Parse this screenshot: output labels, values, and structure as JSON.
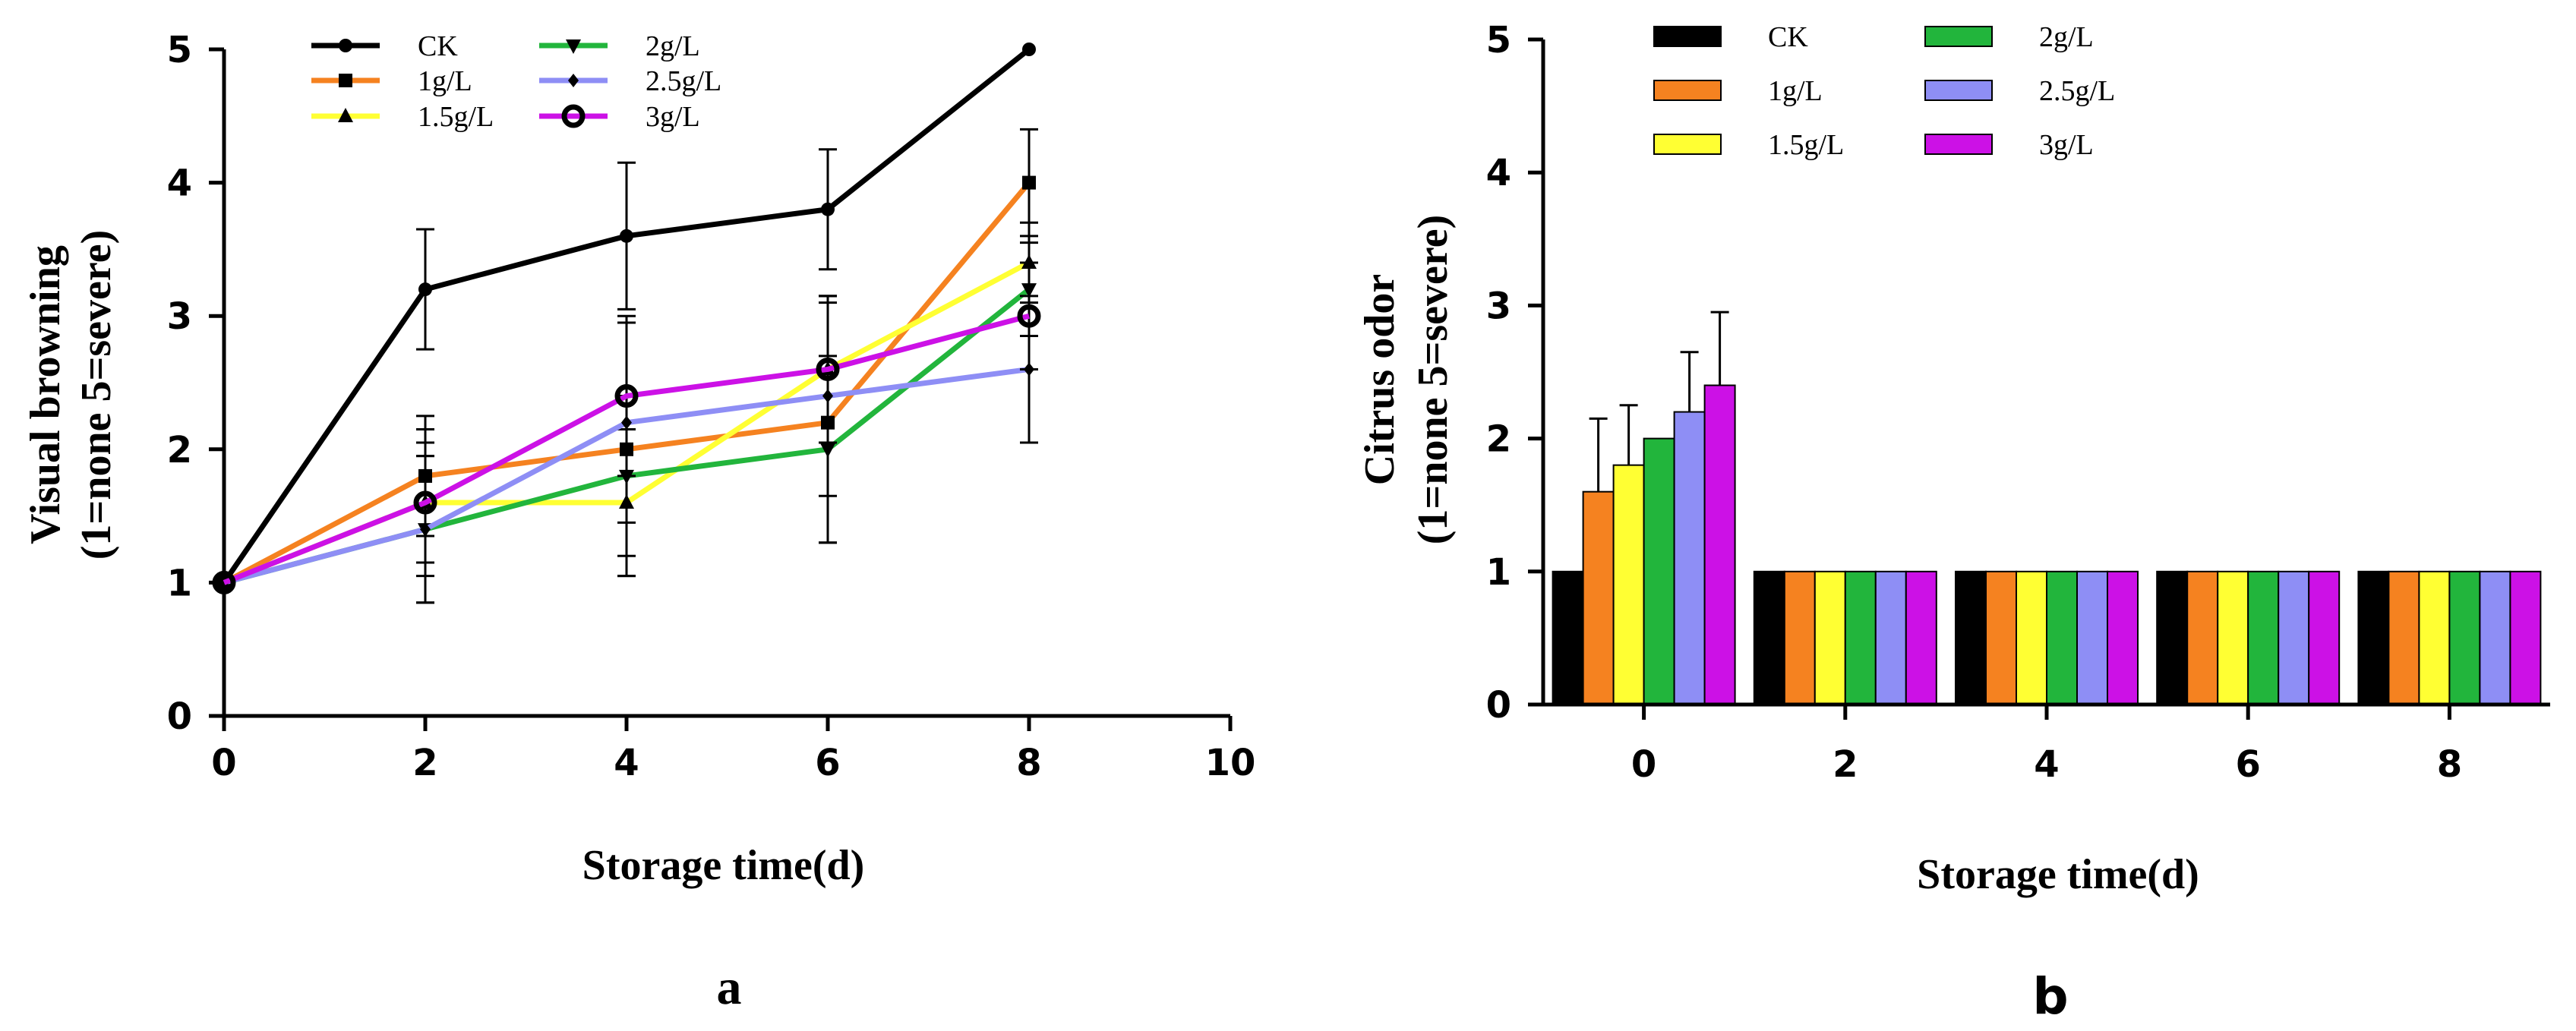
{
  "chart_data": [
    {
      "type": "line",
      "panel_label": "a",
      "xlabel": "Storage time(d)",
      "ylabel_line1": "Visual browning",
      "ylabel_line2": "(1=none  5=severe)",
      "xlim": [
        0,
        10
      ],
      "ylim": [
        0,
        5
      ],
      "x_ticks": [
        "0",
        "2",
        "4",
        "6",
        "8",
        "10"
      ],
      "y_ticks": [
        "0",
        "1",
        "2",
        "3",
        "4",
        "5"
      ],
      "x": [
        0,
        2,
        4,
        6,
        8
      ],
      "series": [
        {
          "name": "CK",
          "color": "#000000",
          "marker": "circle",
          "values": [
            1,
            3.2,
            3.6,
            3.8,
            5
          ],
          "errors": [
            0,
            0.45,
            0.55,
            0.45,
            0
          ]
        },
        {
          "name": "1g/L",
          "color": "#f58220",
          "marker": "square",
          "values": [
            1,
            1.8,
            2.0,
            2.2,
            4.0
          ],
          "errors": [
            0,
            0.45,
            0.95,
            0.9,
            0.4
          ]
        },
        {
          "name": "1.5g/L",
          "color": "#ffff33",
          "marker": "triangle-up",
          "values": [
            1,
            1.6,
            1.6,
            2.6,
            3.4
          ],
          "errors": [
            0,
            0.55,
            0.55,
            0.55,
            0.3
          ]
        },
        {
          "name": "2g/L",
          "color": "#22b53c",
          "marker": "triangle-down",
          "values": [
            1,
            1.4,
            1.8,
            2.0,
            3.2
          ],
          "errors": [
            0,
            0.55,
            0.6,
            0.7,
            0.35
          ]
        },
        {
          "name": "2.5g/L",
          "color": "#8e8ef5",
          "marker": "diamond",
          "values": [
            1,
            1.4,
            2.2,
            2.4,
            2.6
          ],
          "errors": [
            0,
            0.55,
            0.75,
            0.75,
            0.55
          ]
        },
        {
          "name": "3g/L",
          "color": "#cc11e6",
          "marker": "open-circle",
          "values": [
            1,
            1.6,
            2.4,
            2.6,
            3.0
          ],
          "errors": [
            0,
            0.45,
            0.6,
            0.55,
            0.4
          ]
        }
      ]
    },
    {
      "type": "bar",
      "panel_label": "b",
      "xlabel": "Storage time(d)",
      "ylabel_line1": "Citrus odor",
      "ylabel_line2": "(1=none  5=severe)",
      "ylim": [
        0,
        5
      ],
      "y_ticks": [
        "0",
        "1",
        "2",
        "3",
        "4",
        "5"
      ],
      "categories": [
        "0",
        "2",
        "4",
        "6",
        "8"
      ],
      "series": [
        {
          "name": "CK",
          "color": "#000000",
          "values": [
            1,
            1,
            1,
            1,
            1
          ],
          "errors": [
            0,
            0,
            0,
            0,
            0
          ]
        },
        {
          "name": "1g/L",
          "color": "#f58220",
          "values": [
            1.6,
            1,
            1,
            1,
            1
          ],
          "errors": [
            0.55,
            0,
            0,
            0,
            0
          ]
        },
        {
          "name": "1.5g/L",
          "color": "#ffff33",
          "values": [
            1.8,
            1,
            1,
            1,
            1
          ],
          "errors": [
            0.45,
            0,
            0,
            0,
            0
          ]
        },
        {
          "name": "2g/L",
          "color": "#22b53c",
          "values": [
            2.0,
            1,
            1,
            1,
            1
          ],
          "errors": [
            0,
            0,
            0,
            0,
            0
          ]
        },
        {
          "name": "2.5g/L",
          "color": "#8e8ef5",
          "values": [
            2.2,
            1,
            1,
            1,
            1
          ],
          "errors": [
            0.45,
            0,
            0,
            0,
            0
          ]
        },
        {
          "name": "3g/L",
          "color": "#cc11e6",
          "values": [
            2.4,
            1,
            1,
            1,
            1
          ],
          "errors": [
            0.55,
            0,
            0,
            0,
            0
          ]
        }
      ]
    }
  ]
}
